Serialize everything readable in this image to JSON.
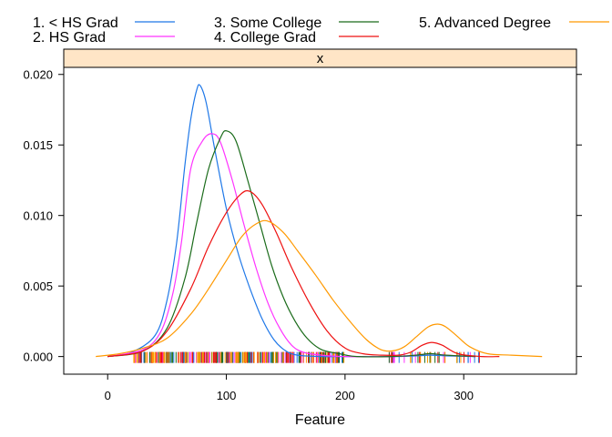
{
  "chart_data": {
    "type": "line",
    "title": "",
    "xlabel": "Feature",
    "ylabel": "",
    "panel_label": "x",
    "xlim": [
      -37,
      395
    ],
    "ylim": [
      -0.00125,
      0.0205
    ],
    "x_ticks": [
      0,
      100,
      200,
      300
    ],
    "y_ticks": [
      0.0,
      0.005,
      0.01,
      0.015,
      0.02
    ],
    "x_tick_labels": [
      "0",
      "100",
      "200",
      "300"
    ],
    "y_tick_labels": [
      "0.000",
      "0.005",
      "0.010",
      "0.015",
      "0.020"
    ],
    "grid": false,
    "legend_position": "top",
    "series": [
      {
        "name": "1. < HS Grad",
        "color": "#1f78e8",
        "points": [
          [
            0,
            0
          ],
          [
            20,
            0.0003
          ],
          [
            40,
            0.0015
          ],
          [
            50,
            0.004
          ],
          [
            58,
            0.008
          ],
          [
            65,
            0.0135
          ],
          [
            70,
            0.0168
          ],
          [
            75,
            0.0189
          ],
          [
            78,
            0.0192
          ],
          [
            83,
            0.018
          ],
          [
            90,
            0.0148
          ],
          [
            100,
            0.0105
          ],
          [
            110,
            0.0073
          ],
          [
            120,
            0.0048
          ],
          [
            130,
            0.0027
          ],
          [
            140,
            0.0012
          ],
          [
            150,
            0.0004
          ],
          [
            160,
            0.0001
          ],
          [
            180,
            0
          ],
          [
            200,
            0
          ],
          [
            240,
            0
          ],
          [
            260,
            5e-05
          ],
          [
            272,
            0.0001
          ],
          [
            285,
            5e-05
          ],
          [
            310,
            0
          ]
        ]
      },
      {
        "name": "2. HS Grad",
        "color": "#ff33ff",
        "points": [
          [
            0,
            0
          ],
          [
            30,
            0.0005
          ],
          [
            45,
            0.0018
          ],
          [
            55,
            0.0045
          ],
          [
            62,
            0.008
          ],
          [
            70,
            0.0133
          ],
          [
            80,
            0.0153
          ],
          [
            88,
            0.0158
          ],
          [
            95,
            0.0152
          ],
          [
            105,
            0.0125
          ],
          [
            115,
            0.0093
          ],
          [
            125,
            0.0063
          ],
          [
            135,
            0.0038
          ],
          [
            145,
            0.002
          ],
          [
            155,
            0.0008
          ],
          [
            165,
            0.0003
          ],
          [
            180,
            0.0001
          ],
          [
            200,
            0
          ],
          [
            240,
            0
          ],
          [
            260,
            0.0001
          ],
          [
            272,
            0.0002
          ],
          [
            285,
            0.0001
          ],
          [
            310,
            0
          ]
        ]
      },
      {
        "name": "3. Some College",
        "color": "#1a6b1a",
        "points": [
          [
            0,
            0
          ],
          [
            30,
            0.0004
          ],
          [
            50,
            0.002
          ],
          [
            65,
            0.0055
          ],
          [
            75,
            0.0095
          ],
          [
            85,
            0.0133
          ],
          [
            95,
            0.0155
          ],
          [
            100,
            0.016
          ],
          [
            108,
            0.0153
          ],
          [
            118,
            0.0125
          ],
          [
            128,
            0.0095
          ],
          [
            138,
            0.0065
          ],
          [
            148,
            0.0042
          ],
          [
            158,
            0.0025
          ],
          [
            168,
            0.0013
          ],
          [
            180,
            0.0005
          ],
          [
            195,
            0.0002
          ],
          [
            210,
            0
          ],
          [
            240,
            0
          ],
          [
            260,
            0.0001
          ],
          [
            272,
            0.0002
          ],
          [
            285,
            0.0001
          ],
          [
            310,
            0
          ]
        ]
      },
      {
        "name": "4. College Grad",
        "color": "#ee1111",
        "points": [
          [
            0,
            0
          ],
          [
            30,
            0.0004
          ],
          [
            50,
            0.0018
          ],
          [
            70,
            0.0048
          ],
          [
            85,
            0.0078
          ],
          [
            100,
            0.0102
          ],
          [
            112,
            0.0115
          ],
          [
            120,
            0.0117
          ],
          [
            130,
            0.0108
          ],
          [
            142,
            0.0088
          ],
          [
            155,
            0.0063
          ],
          [
            170,
            0.0038
          ],
          [
            185,
            0.0018
          ],
          [
            200,
            0.0006
          ],
          [
            215,
            0.0002
          ],
          [
            230,
            0.0001
          ],
          [
            245,
            0.0001
          ],
          [
            255,
            0.0003
          ],
          [
            265,
            0.0008
          ],
          [
            273,
            0.001
          ],
          [
            282,
            0.0008
          ],
          [
            295,
            0.0002
          ],
          [
            315,
            0
          ],
          [
            330,
            0
          ]
        ]
      },
      {
        "name": "5. Advanced Degree",
        "color": "#ff9900",
        "points": [
          [
            -10,
            0
          ],
          [
            10,
            0.0002
          ],
          [
            30,
            0.0006
          ],
          [
            50,
            0.0013
          ],
          [
            70,
            0.003
          ],
          [
            85,
            0.0048
          ],
          [
            100,
            0.0068
          ],
          [
            113,
            0.0085
          ],
          [
            125,
            0.0094
          ],
          [
            135,
            0.0096
          ],
          [
            148,
            0.0088
          ],
          [
            160,
            0.0075
          ],
          [
            175,
            0.0058
          ],
          [
            190,
            0.004
          ],
          [
            205,
            0.0024
          ],
          [
            218,
            0.0012
          ],
          [
            230,
            0.0005
          ],
          [
            240,
            0.0004
          ],
          [
            250,
            0.0007
          ],
          [
            260,
            0.0014
          ],
          [
            270,
            0.0021
          ],
          [
            278,
            0.0023
          ],
          [
            285,
            0.0021
          ],
          [
            295,
            0.0014
          ],
          [
            305,
            0.0007
          ],
          [
            320,
            0.0002
          ],
          [
            340,
            0.0001
          ],
          [
            366,
            0
          ]
        ]
      }
    ]
  }
}
